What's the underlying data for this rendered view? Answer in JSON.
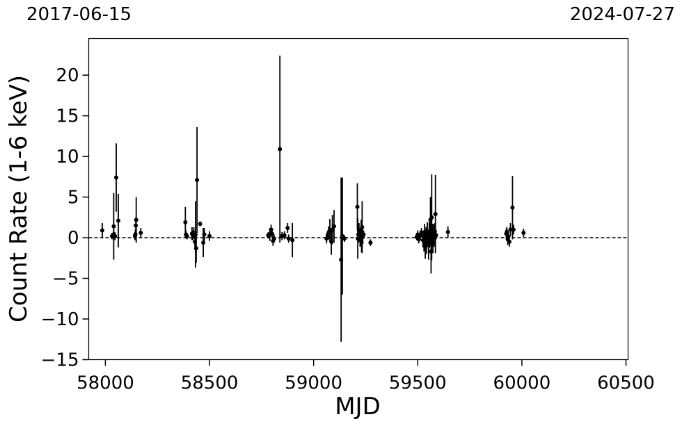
{
  "top_dates": {
    "left": "2017-06-15",
    "right": "2024-07-27"
  },
  "chart_data": {
    "type": "scatter",
    "title": "",
    "xlabel": "MJD",
    "ylabel": "Count Rate (1-6 keV)",
    "xlim": [
      57920,
      60510
    ],
    "ylim": [
      -15,
      24.5
    ],
    "xticks": [
      58000,
      58500,
      59000,
      59500,
      60000,
      60500
    ],
    "xtick_labels": [
      "58000",
      "58500",
      "59000",
      "59500",
      "60000",
      "60500"
    ],
    "yticks": [
      -15,
      -10,
      -5,
      0,
      5,
      10,
      15,
      20
    ],
    "ytick_labels": [
      "−15",
      "−10",
      "−5",
      "0",
      "5",
      "10",
      "15",
      "20"
    ],
    "reference_line": {
      "y": 0,
      "style": "dashed"
    },
    "grid": false,
    "legend": "none",
    "color": "#000000",
    "series": [
      {
        "points": [
          {
            "x": 57985,
            "y": 0.9,
            "err": 0.9
          },
          {
            "x": 58032,
            "y": 0.2,
            "err": 0.4
          },
          {
            "x": 58038,
            "y": 0.3,
            "err": 0.4
          },
          {
            "x": 58040,
            "y": 1.4,
            "err": 4.1
          },
          {
            "x": 58046,
            "y": 0.2,
            "err": 0.5
          },
          {
            "x": 58052,
            "y": 7.4,
            "err": 4.2
          },
          {
            "x": 58062,
            "y": 2.1,
            "err": 3.3
          },
          {
            "x": 58142,
            "y": 0.2,
            "err": 0.5
          },
          {
            "x": 58144,
            "y": 0.4,
            "err": 0.6
          },
          {
            "x": 58146,
            "y": 1.5,
            "err": 1.0
          },
          {
            "x": 58148,
            "y": 2.2,
            "err": 2.8
          },
          {
            "x": 58170,
            "y": 0.6,
            "err": 0.6
          },
          {
            "x": 58384,
            "y": 1.9,
            "err": 1.9
          },
          {
            "x": 58387,
            "y": 0.4,
            "err": 0.5
          },
          {
            "x": 58392,
            "y": 0.2,
            "err": 0.4
          },
          {
            "x": 58416,
            "y": 0.5,
            "err": 0.8
          },
          {
            "x": 58420,
            "y": 0.3,
            "err": 0.6
          },
          {
            "x": 58425,
            "y": 0.6,
            "err": 0.7
          },
          {
            "x": 58430,
            "y": -0.5,
            "err": 1.0
          },
          {
            "x": 58433,
            "y": 0.4,
            "err": 4.1
          },
          {
            "x": 58436,
            "y": -1.3,
            "err": 1.8
          },
          {
            "x": 58440,
            "y": 7.1,
            "err": 6.5
          },
          {
            "x": 58455,
            "y": 1.7,
            "err": 0.3
          },
          {
            "x": 58470,
            "y": -0.6,
            "err": 1.8
          },
          {
            "x": 58475,
            "y": 0.4,
            "err": 0.8
          },
          {
            "x": 58500,
            "y": 0.2,
            "err": 0.6
          },
          {
            "x": 58782,
            "y": 0.3,
            "err": 0.4
          },
          {
            "x": 58790,
            "y": 0.4,
            "err": 0.8
          },
          {
            "x": 58796,
            "y": 1.0,
            "err": 0.6
          },
          {
            "x": 58800,
            "y": 0.5,
            "err": 0.5
          },
          {
            "x": 58805,
            "y": -0.4,
            "err": 0.6
          },
          {
            "x": 58810,
            "y": -0.1,
            "err": 0.5
          },
          {
            "x": 58838,
            "y": 10.9,
            "err": 11.5
          },
          {
            "x": 58848,
            "y": 0.2,
            "err": 0.5
          },
          {
            "x": 58860,
            "y": 0.3,
            "err": 0.5
          },
          {
            "x": 58875,
            "y": 1.2,
            "err": 0.6
          },
          {
            "x": 58880,
            "y": -0.1,
            "err": 0.5
          },
          {
            "x": 58898,
            "y": -0.3,
            "err": 2.1
          },
          {
            "x": 59062,
            "y": -0.1,
            "err": 0.6
          },
          {
            "x": 59068,
            "y": 0.3,
            "err": 0.6
          },
          {
            "x": 59072,
            "y": 0.6,
            "err": 0.8
          },
          {
            "x": 59078,
            "y": 0.9,
            "err": 1.4
          },
          {
            "x": 59085,
            "y": -0.5,
            "err": 1.6
          },
          {
            "x": 59090,
            "y": 1.0,
            "err": 1.8
          },
          {
            "x": 59098,
            "y": 1.4,
            "err": 2.0
          },
          {
            "x": 59132,
            "y": -2.7,
            "err": 10.1
          },
          {
            "x": 59138,
            "y": 0.2,
            "err": 7.2
          },
          {
            "x": 59148,
            "y": -0.1,
            "err": 0.4
          },
          {
            "x": 59210,
            "y": 3.8,
            "err": 2.9
          },
          {
            "x": 59212,
            "y": -0.1,
            "err": 2.5
          },
          {
            "x": 59215,
            "y": 0.4,
            "err": 1.0
          },
          {
            "x": 59218,
            "y": 0.8,
            "err": 1.0
          },
          {
            "x": 59220,
            "y": 0.2,
            "err": 0.6
          },
          {
            "x": 59223,
            "y": -0.3,
            "err": 0.8
          },
          {
            "x": 59225,
            "y": 0.0,
            "err": 1.0
          },
          {
            "x": 59228,
            "y": 1.0,
            "err": 1.2
          },
          {
            "x": 59230,
            "y": -0.6,
            "err": 1.2
          },
          {
            "x": 59233,
            "y": 1.3,
            "err": 3.2
          },
          {
            "x": 59236,
            "y": 0.1,
            "err": 0.8
          },
          {
            "x": 59240,
            "y": 0.4,
            "err": 0.5
          },
          {
            "x": 59273,
            "y": -0.6,
            "err": 0.4
          },
          {
            "x": 59495,
            "y": 0.1,
            "err": 0.4
          },
          {
            "x": 59500,
            "y": 0.4,
            "err": 0.5
          },
          {
            "x": 59505,
            "y": -0.2,
            "err": 0.5
          },
          {
            "x": 59512,
            "y": 0.3,
            "err": 0.6
          },
          {
            "x": 59518,
            "y": 0.6,
            "err": 0.6
          },
          {
            "x": 59525,
            "y": -0.3,
            "err": 0.9
          },
          {
            "x": 59530,
            "y": -0.4,
            "err": 1.3
          },
          {
            "x": 59533,
            "y": 0.7,
            "err": 1.0
          },
          {
            "x": 59536,
            "y": -1.1,
            "err": 1.5
          },
          {
            "x": 59540,
            "y": 0.2,
            "err": 1.1
          },
          {
            "x": 59543,
            "y": -0.8,
            "err": 1.2
          },
          {
            "x": 59546,
            "y": 0.5,
            "err": 1.4
          },
          {
            "x": 59549,
            "y": 0.0,
            "err": 1.0
          },
          {
            "x": 59552,
            "y": -0.9,
            "err": 1.8
          },
          {
            "x": 59555,
            "y": 0.3,
            "err": 1.6
          },
          {
            "x": 59558,
            "y": 0.6,
            "err": 1.4
          },
          {
            "x": 59561,
            "y": 2.2,
            "err": 2.8
          },
          {
            "x": 59564,
            "y": -1.7,
            "err": 2.7
          },
          {
            "x": 59567,
            "y": 2.5,
            "err": 5.3
          },
          {
            "x": 59570,
            "y": 0.2,
            "err": 1.5
          },
          {
            "x": 59573,
            "y": -0.6,
            "err": 1.3
          },
          {
            "x": 59576,
            "y": 0.5,
            "err": 1.2
          },
          {
            "x": 59579,
            "y": 0.0,
            "err": 1.1
          },
          {
            "x": 59582,
            "y": 0.8,
            "err": 1.0
          },
          {
            "x": 59585,
            "y": 2.9,
            "err": 4.8
          },
          {
            "x": 59588,
            "y": 0.3,
            "err": 0.5
          },
          {
            "x": 59645,
            "y": 0.7,
            "err": 0.7
          },
          {
            "x": 59925,
            "y": 0.5,
            "err": 0.6
          },
          {
            "x": 59928,
            "y": 0.7,
            "err": 0.6
          },
          {
            "x": 59932,
            "y": -0.2,
            "err": 0.7
          },
          {
            "x": 59935,
            "y": 0.1,
            "err": 0.6
          },
          {
            "x": 59940,
            "y": -0.5,
            "err": 0.6
          },
          {
            "x": 59945,
            "y": 1.0,
            "err": 0.8
          },
          {
            "x": 59955,
            "y": 3.7,
            "err": 3.9
          },
          {
            "x": 59960,
            "y": 1.0,
            "err": 0.6
          },
          {
            "x": 60008,
            "y": 0.6,
            "err": 0.5
          }
        ]
      }
    ]
  }
}
